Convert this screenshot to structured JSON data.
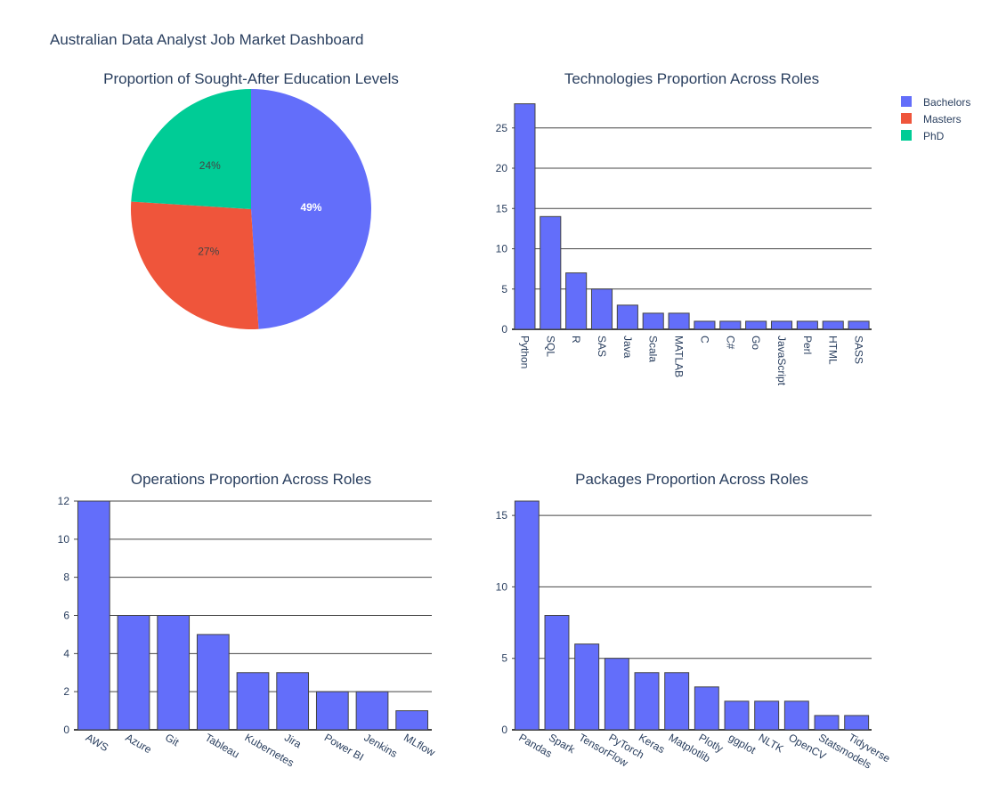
{
  "dashboard": {
    "title": "Australian Data Analyst Job Market Dashboard"
  },
  "legend": {
    "items": [
      {
        "label": "Bachelors",
        "color": "#636efa"
      },
      {
        "label": "Masters",
        "color": "#ef553b"
      },
      {
        "label": "PhD",
        "color": "#00cc96"
      }
    ]
  },
  "chart_data": [
    {
      "type": "pie",
      "title": "Proportion of Sought-After Education Levels",
      "labels": [
        "Bachelors",
        "Masters",
        "PhD"
      ],
      "values": [
        49,
        27,
        24
      ],
      "text_labels": [
        "49%",
        "27%",
        "24%"
      ],
      "colors": [
        "#636efa",
        "#ef553b",
        "#00cc96"
      ]
    },
    {
      "type": "bar",
      "title": "Technologies Proportion Across Roles",
      "categories": [
        "Python",
        "SQL",
        "R",
        "SAS",
        "Java",
        "Scala",
        "MATLAB",
        "C",
        "C#",
        "Go",
        "JavaScript",
        "Perl",
        "HTML",
        "SASS"
      ],
      "values": [
        28,
        14,
        7,
        5,
        3,
        2,
        2,
        1,
        1,
        1,
        1,
        1,
        1,
        1
      ],
      "ylim": [
        0,
        28
      ],
      "yticks": [
        0,
        5,
        10,
        15,
        20,
        25
      ],
      "tick_angle": 90,
      "color": "#636efa",
      "grid": true
    },
    {
      "type": "bar",
      "title": "Operations Proportion Across Roles",
      "categories": [
        "AWS",
        "Azure",
        "Git",
        "Tableau",
        "Kubernetes",
        "Jira",
        "Power BI",
        "Jenkins",
        "MLflow"
      ],
      "values": [
        12,
        6,
        6,
        5,
        3,
        3,
        2,
        2,
        1
      ],
      "ylim": [
        0,
        12
      ],
      "yticks": [
        0,
        2,
        4,
        6,
        8,
        10,
        12
      ],
      "tick_angle": 30,
      "color": "#636efa",
      "grid": true
    },
    {
      "type": "bar",
      "title": "Packages Proportion Across Roles",
      "categories": [
        "Pandas",
        "Spark",
        "TensorFlow",
        "PyTorch",
        "Keras",
        "Matplotlib",
        "Plotly",
        "ggplot",
        "NLTK",
        "OpenCV",
        "Statsmodels",
        "Tidyverse"
      ],
      "values": [
        16,
        8,
        6,
        5,
        4,
        4,
        3,
        2,
        2,
        2,
        1,
        1
      ],
      "ylim": [
        0,
        16
      ],
      "yticks": [
        0,
        5,
        10,
        15
      ],
      "tick_angle": 30,
      "color": "#636efa",
      "grid": true
    }
  ]
}
